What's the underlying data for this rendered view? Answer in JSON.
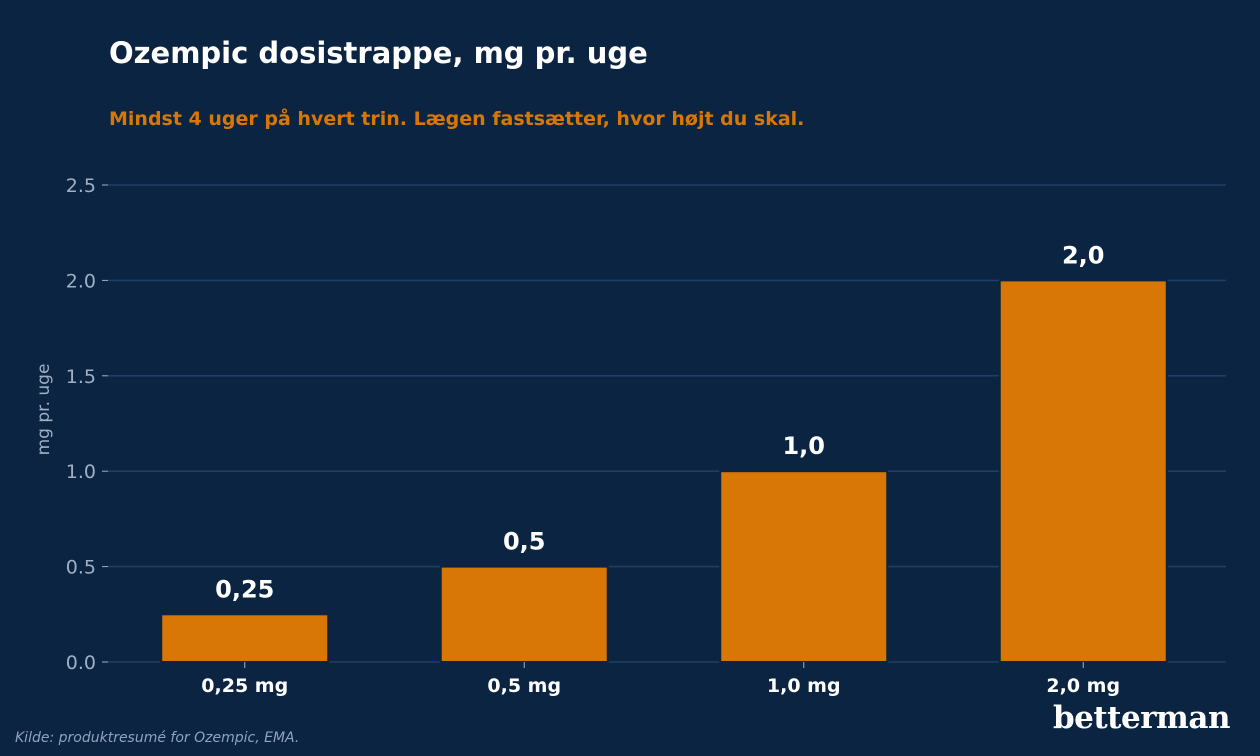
{
  "colors": {
    "background": "#0b2441",
    "bar": "#d97706",
    "grid": "#1e3f66",
    "axis_text": "#9fb0c6",
    "label_text": "#ffffff"
  },
  "chart_data": {
    "type": "bar",
    "title": "Ozempic dosistrappe, mg pr. uge",
    "subtitle": "Mindst 4 uger på hvert trin. Lægen fastsætter, hvor højt du skal.",
    "ylabel": "mg pr. uge",
    "xlabel": "",
    "categories": [
      "0,25 mg",
      "0,5 mg",
      "1,0 mg",
      "2,0 mg"
    ],
    "values": [
      0.25,
      0.5,
      1.0,
      2.0
    ],
    "data_labels": [
      "0,25",
      "0,5",
      "1,0",
      "2,0"
    ],
    "ylim": [
      0,
      2.5
    ],
    "yticks": [
      0.0,
      0.5,
      1.0,
      1.5,
      2.0,
      2.5
    ],
    "ytick_labels": [
      "0.0",
      "0.5",
      "1.0",
      "1.5",
      "2.0",
      "2.5"
    ],
    "grid": "horizontal",
    "legend": "none"
  },
  "footer": {
    "source": "Kilde: produktresumé for Ozempic, EMA.",
    "brand": "betterman"
  }
}
